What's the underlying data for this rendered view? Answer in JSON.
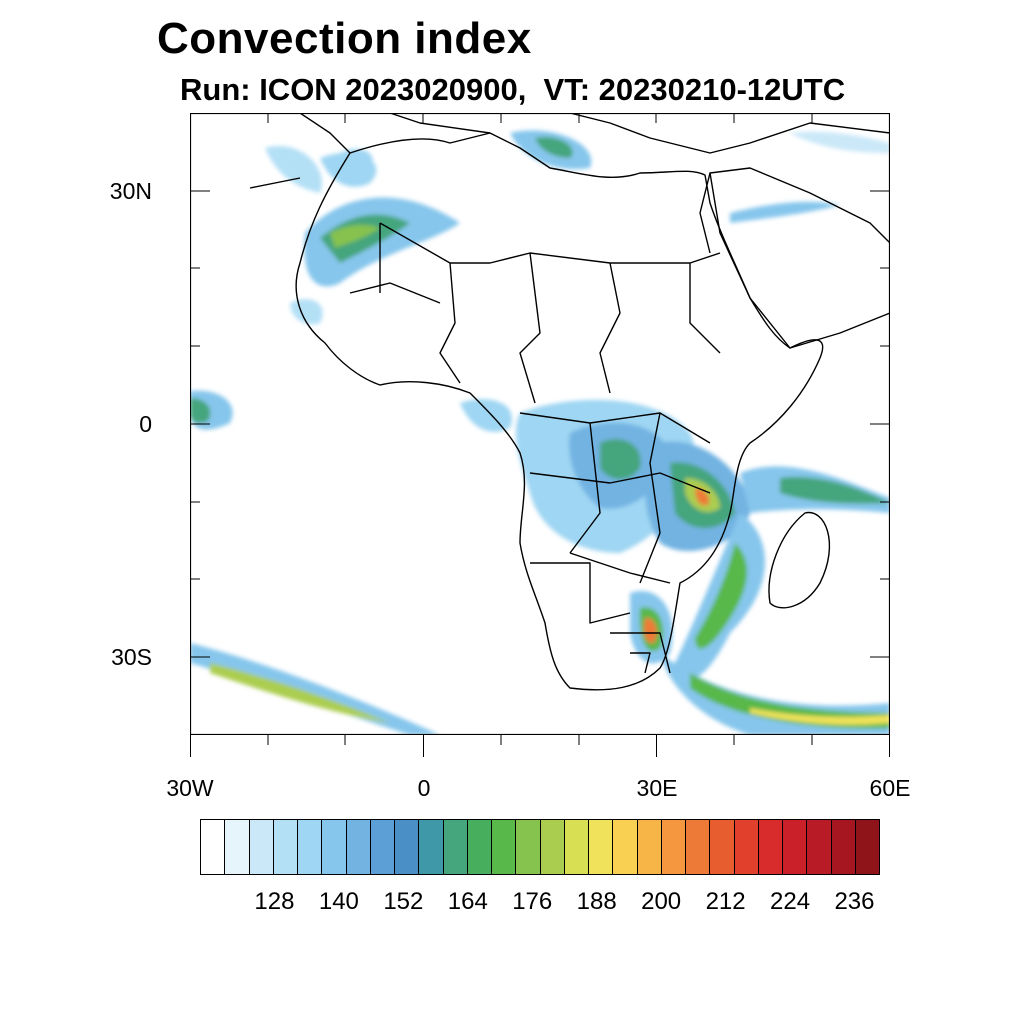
{
  "title": "Convection index",
  "subtitle": "Run: ICON 2023020900,  VT: 20230210-12UTC",
  "map": {
    "lon_range": [
      -30,
      60
    ],
    "lat_range": [
      -40,
      40
    ],
    "lat_ticks": [
      {
        "value": 30,
        "label": "30N"
      },
      {
        "value": 0,
        "label": "0"
      },
      {
        "value": -30,
        "label": "30S"
      }
    ],
    "lon_ticks": [
      {
        "value": -30,
        "label": "30W"
      },
      {
        "value": 0,
        "label": "0"
      },
      {
        "value": 30,
        "label": "30E"
      },
      {
        "value": 60,
        "label": "60E"
      }
    ]
  },
  "colorbar": {
    "colors": [
      "#ffffff",
      "#e6f4fc",
      "#cbe8f8",
      "#b4e0f6",
      "#9fd6f3",
      "#86c6ec",
      "#72b3e2",
      "#5c9fd6",
      "#4a8fc6",
      "#3f98a8",
      "#45a57d",
      "#46ae5c",
      "#58b84a",
      "#86c24e",
      "#abcd4f",
      "#d8df52",
      "#f0e25a",
      "#f9d052",
      "#f7b548",
      "#f4973f",
      "#ee7a38",
      "#e85d30",
      "#e1412c",
      "#d72c2b",
      "#c9202a",
      "#b81a26",
      "#a51621",
      "#8f1419"
    ],
    "labels": [
      {
        "text": "128",
        "index": 3
      },
      {
        "text": "140",
        "index": 6
      },
      {
        "text": "152",
        "index": 9
      },
      {
        "text": "164",
        "index": 12
      },
      {
        "text": "176",
        "index": 15
      },
      {
        "text": "188",
        "index": 18
      },
      {
        "text": "200",
        "index": 21
      },
      {
        "text": "212",
        "index": 24
      },
      {
        "text": "224",
        "index": 27
      },
      {
        "text": "236",
        "index": 30
      }
    ]
  }
}
